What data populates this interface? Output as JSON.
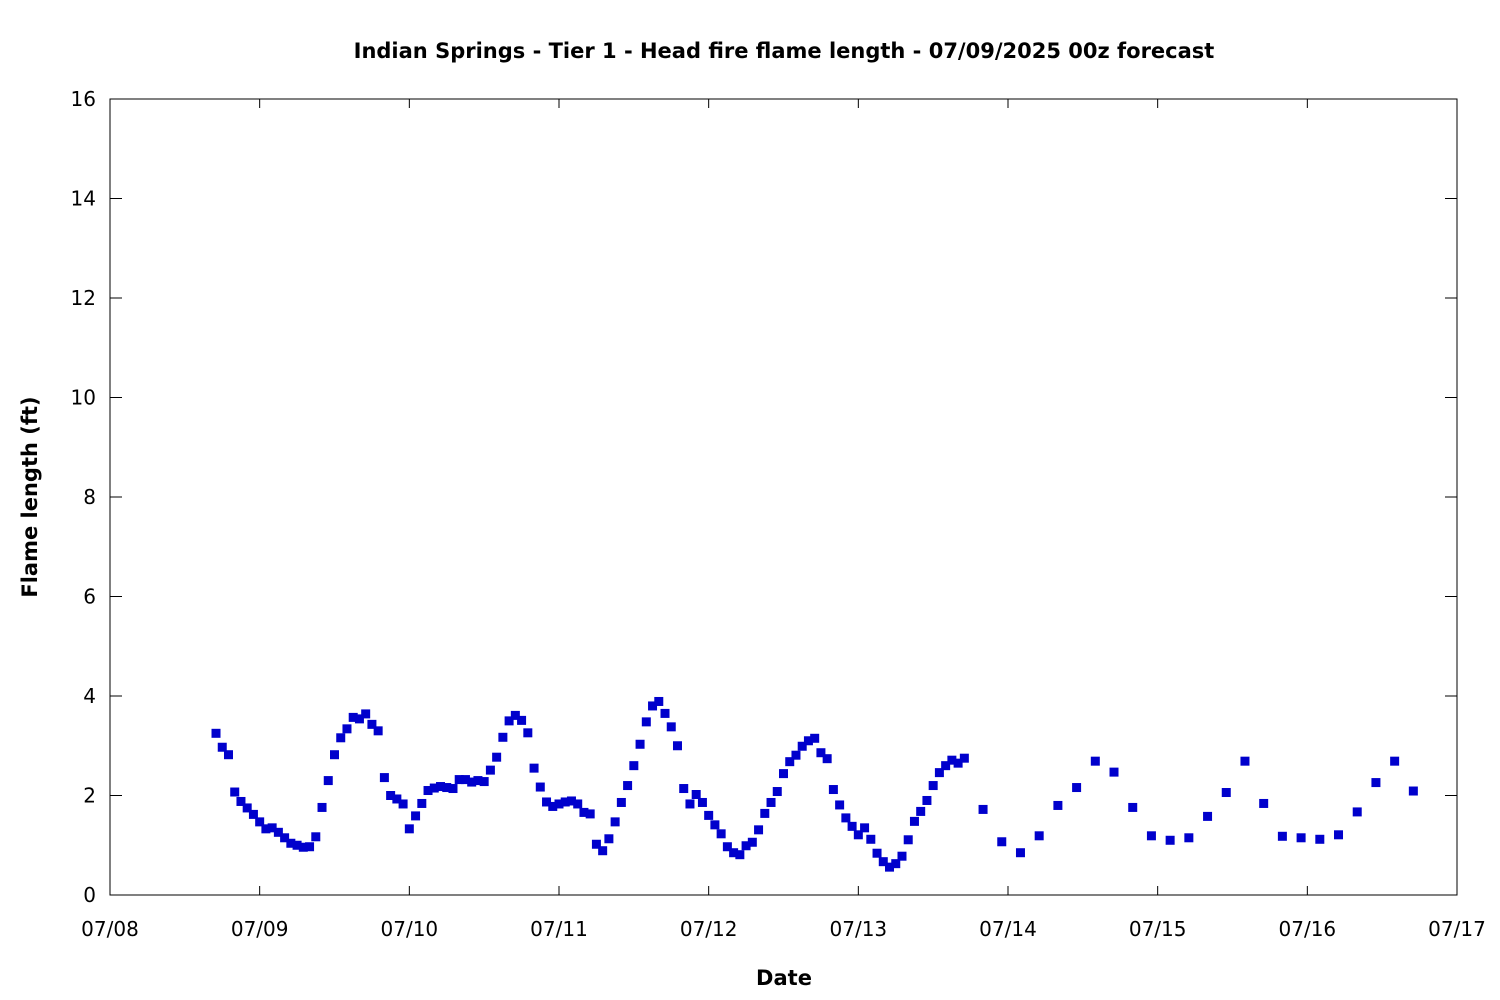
{
  "chart_data": {
    "type": "scatter",
    "title": "Indian Springs - Tier 1 - Head fire flame length - 07/09/2025 00z forecast",
    "xlabel": "Date",
    "ylabel": "Flame length (ft)",
    "xlim": [
      "07/08",
      "07/17"
    ],
    "ylim": [
      0,
      16
    ],
    "x_ticks": [
      "07/08",
      "07/09",
      "07/10",
      "07/11",
      "07/12",
      "07/13",
      "07/14",
      "07/15",
      "07/16",
      "07/17"
    ],
    "y_ticks": [
      0,
      2,
      4,
      6,
      8,
      10,
      12,
      14,
      16
    ],
    "grid": false,
    "legend": "none",
    "marker_color": "#0000cc",
    "series": [
      {
        "x": [
          "07/08 17:00",
          "07/08 18:00",
          "07/08 19:00",
          "07/08 20:00",
          "07/08 21:00",
          "07/08 22:00",
          "07/08 23:00",
          "07/09 00:00",
          "07/09 01:00",
          "07/09 02:00",
          "07/09 03:00",
          "07/09 04:00",
          "07/09 05:00",
          "07/09 06:00",
          "07/09 07:00",
          "07/09 08:00",
          "07/09 09:00",
          "07/09 10:00",
          "07/09 11:00",
          "07/09 12:00",
          "07/09 13:00",
          "07/09 14:00",
          "07/09 15:00",
          "07/09 16:00",
          "07/09 17:00",
          "07/09 18:00",
          "07/09 19:00",
          "07/09 20:00",
          "07/09 21:00",
          "07/09 22:00",
          "07/09 23:00",
          "07/10 00:00",
          "07/10 01:00",
          "07/10 02:00",
          "07/10 03:00",
          "07/10 04:00",
          "07/10 05:00",
          "07/10 06:00",
          "07/10 07:00",
          "07/10 08:00",
          "07/10 09:00",
          "07/10 10:00",
          "07/10 11:00",
          "07/10 12:00",
          "07/10 13:00",
          "07/10 14:00",
          "07/10 15:00",
          "07/10 16:00",
          "07/10 17:00",
          "07/10 18:00",
          "07/10 19:00",
          "07/10 20:00",
          "07/10 21:00",
          "07/10 22:00",
          "07/10 23:00",
          "07/11 00:00",
          "07/11 01:00",
          "07/11 02:00",
          "07/11 03:00",
          "07/11 04:00",
          "07/11 05:00",
          "07/11 06:00",
          "07/11 07:00",
          "07/11 08:00",
          "07/11 09:00",
          "07/11 10:00",
          "07/11 11:00",
          "07/11 12:00",
          "07/11 13:00",
          "07/11 14:00",
          "07/11 15:00",
          "07/11 16:00",
          "07/11 17:00",
          "07/11 18:00",
          "07/11 19:00",
          "07/11 20:00",
          "07/11 21:00",
          "07/11 22:00",
          "07/11 23:00",
          "07/12 00:00",
          "07/12 01:00",
          "07/12 02:00",
          "07/12 03:00",
          "07/12 04:00",
          "07/12 05:00",
          "07/12 06:00",
          "07/12 07:00",
          "07/12 08:00",
          "07/12 09:00",
          "07/12 10:00",
          "07/12 11:00",
          "07/12 12:00",
          "07/12 13:00",
          "07/12 14:00",
          "07/12 15:00",
          "07/12 16:00",
          "07/12 17:00",
          "07/12 18:00",
          "07/12 19:00",
          "07/12 20:00",
          "07/12 21:00",
          "07/12 22:00",
          "07/12 23:00",
          "07/13 00:00",
          "07/13 01:00",
          "07/13 02:00",
          "07/13 03:00",
          "07/13 04:00",
          "07/13 05:00",
          "07/13 06:00",
          "07/13 07:00",
          "07/13 08:00",
          "07/13 09:00",
          "07/13 10:00",
          "07/13 11:00",
          "07/13 12:00",
          "07/13 13:00",
          "07/13 14:00",
          "07/13 15:00",
          "07/13 16:00",
          "07/13 17:00",
          "07/13 20:00",
          "07/13 23:00",
          "07/14 02:00",
          "07/14 05:00",
          "07/14 08:00",
          "07/14 11:00",
          "07/14 14:00",
          "07/14 17:00",
          "07/14 20:00",
          "07/14 23:00",
          "07/15 02:00",
          "07/15 05:00",
          "07/15 08:00",
          "07/15 11:00",
          "07/15 14:00",
          "07/15 17:00",
          "07/15 20:00",
          "07/15 23:00",
          "07/16 02:00",
          "07/16 05:00",
          "07/16 08:00",
          "07/16 11:00",
          "07/16 14:00",
          "07/16 17:00"
        ],
        "y": [
          3.25,
          2.97,
          2.82,
          2.07,
          1.88,
          1.75,
          1.62,
          1.47,
          1.33,
          1.35,
          1.26,
          1.15,
          1.04,
          1.0,
          0.96,
          0.97,
          1.17,
          1.76,
          2.3,
          2.82,
          3.16,
          3.34,
          3.57,
          3.54,
          3.64,
          3.43,
          3.3,
          2.36,
          2.0,
          1.93,
          1.83,
          1.33,
          1.59,
          1.84,
          2.1,
          2.15,
          2.18,
          2.16,
          2.14,
          2.32,
          2.32,
          2.27,
          2.3,
          2.28,
          2.51,
          2.77,
          3.17,
          3.5,
          3.61,
          3.51,
          3.26,
          2.55,
          2.17,
          1.87,
          1.78,
          1.83,
          1.87,
          1.89,
          1.83,
          1.66,
          1.63,
          1.02,
          0.89,
          1.13,
          1.47,
          1.86,
          2.2,
          2.6,
          3.03,
          3.48,
          3.8,
          3.89,
          3.65,
          3.38,
          3.0,
          2.14,
          1.83,
          2.02,
          1.86,
          1.6,
          1.41,
          1.23,
          0.97,
          0.85,
          0.81,
          0.99,
          1.06,
          1.31,
          1.64,
          1.86,
          2.08,
          2.44,
          2.68,
          2.81,
          2.99,
          3.1,
          3.15,
          2.86,
          2.74,
          2.12,
          1.81,
          1.55,
          1.38,
          1.21,
          1.35,
          1.12,
          0.84,
          0.67,
          0.56,
          0.63,
          0.78,
          1.11,
          1.48,
          1.68,
          1.9,
          2.2,
          2.46,
          2.6,
          2.71,
          2.65,
          2.75,
          1.72,
          1.07,
          0.85,
          1.19,
          1.8,
          2.16,
          2.69,
          2.47,
          1.76,
          1.19,
          1.1,
          1.15,
          1.58,
          2.06,
          2.69,
          1.84,
          1.18,
          1.15,
          1.12,
          1.21,
          1.67,
          2.26,
          2.69,
          2.09
        ]
      }
    ]
  }
}
